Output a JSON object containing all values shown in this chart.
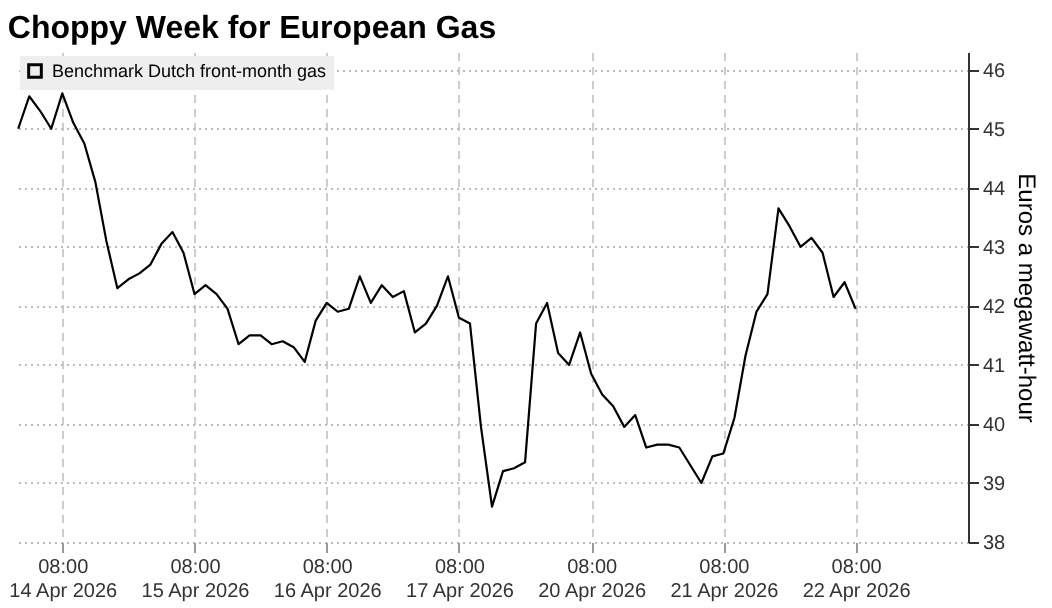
{
  "chart_data": {
    "type": "line",
    "title": "Choppy Week for European Gas",
    "y2label": "Euros a megawatt-hour",
    "categories": [
      null,
      null,
      null,
      null,
      "08:00\n14 Apr 2026",
      null,
      null,
      null,
      null,
      null,
      null,
      null,
      null,
      null,
      null,
      null,
      "08:00\n15 Apr 2026",
      null,
      null,
      null,
      null,
      null,
      null,
      null,
      null,
      null,
      null,
      null,
      "08:00\n16 Apr 2026",
      null,
      null,
      null,
      null,
      null,
      null,
      null,
      null,
      null,
      null,
      null,
      "08:00\n17 Apr 2026",
      null,
      null,
      null,
      null,
      null,
      null,
      null,
      null,
      null,
      null,
      null,
      "08:00\n20 Apr 2026",
      null,
      null,
      null,
      null,
      null,
      null,
      null,
      null,
      null,
      null,
      null,
      "08:00\n21 Apr 2026",
      null,
      null,
      null,
      null,
      null,
      null,
      null,
      null,
      null,
      null,
      null,
      "08:00\n22 Apr 2026",
      null,
      null,
      null,
      null,
      null,
      null,
      null,
      null,
      null,
      null
    ],
    "series": [
      {
        "name": "Benchmark Dutch front-month gas",
        "color": "#000000",
        "axis": "y2",
        "values": [
          45.0,
          45.55,
          45.3,
          45.0,
          45.6,
          45.1,
          44.75,
          44.1,
          43.1,
          42.3,
          42.45,
          42.55,
          42.7,
          43.05,
          43.25,
          42.9,
          42.2,
          42.35,
          42.2,
          41.95,
          41.35,
          41.5,
          41.5,
          41.35,
          41.4,
          41.3,
          41.05,
          41.75,
          42.05,
          41.9,
          41.95,
          42.5,
          42.05,
          42.35,
          42.15,
          42.25,
          41.55,
          41.7,
          42.0,
          42.5,
          41.8,
          41.7,
          39.95,
          38.6,
          39.2,
          39.25,
          39.35,
          41.7,
          42.05,
          41.2,
          41.0,
          41.55,
          40.85,
          40.5,
          40.3,
          39.95,
          40.15,
          39.6,
          39.65,
          39.65,
          39.6,
          39.3,
          39.0,
          39.45,
          39.5,
          40.1,
          41.15,
          41.9,
          42.2,
          43.65,
          43.35,
          43.0,
          43.15,
          42.9,
          42.15,
          42.4,
          41.95,
          null,
          null,
          null,
          null,
          null,
          null,
          null,
          null,
          null,
          null
        ]
      }
    ],
    "y2lim": [
      38,
      46.3
    ],
    "y2ticks": [
      38,
      39,
      40,
      41,
      42,
      43,
      44,
      45,
      46
    ],
    "grid": true,
    "legend": "top left",
    "line_style": "solid",
    "marker": "none"
  }
}
